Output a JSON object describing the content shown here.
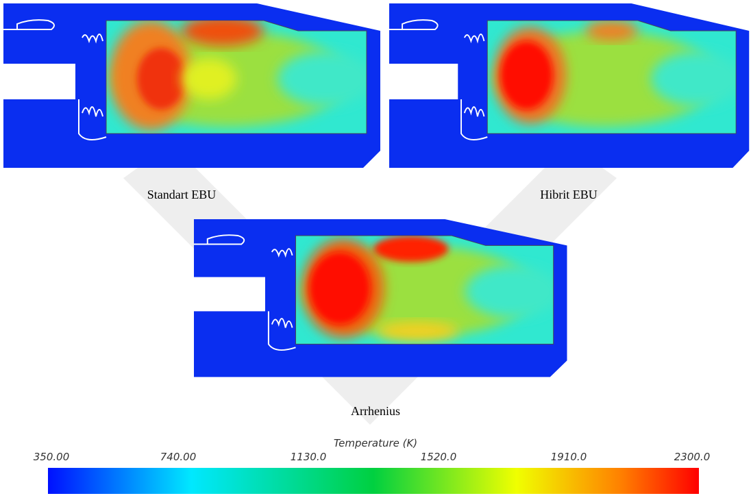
{
  "panels": [
    {
      "caption": "Standart EBU"
    },
    {
      "caption": "Hibrit EBU"
    },
    {
      "caption": "Arrhenius"
    }
  ],
  "colorbar": {
    "title": "Temperature (K)",
    "ticks": [
      "350.00",
      "740.00",
      "1130.0",
      "1520.0",
      "1910.0",
      "2300.0"
    ]
  }
}
